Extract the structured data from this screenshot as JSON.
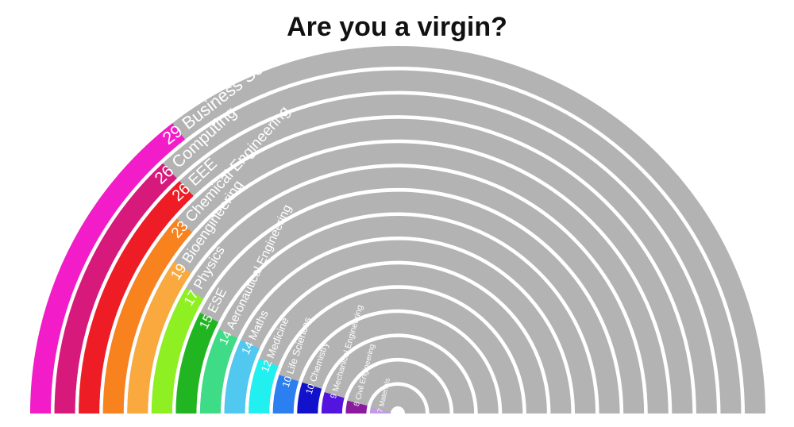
{
  "chart_data": {
    "type": "radial-bar",
    "title": "Are you a virgin?",
    "categories": [
      "Business School",
      "Computing",
      "EEE",
      "Chemical Engineering",
      "Bioengineering",
      "Physics",
      "ESE",
      "Aeronautical Engineering",
      "Maths",
      "Medicine",
      "Life Sciences",
      "Chemistry",
      "Mechanical Engineering",
      "Civil Engineering",
      "Materials"
    ],
    "values": [
      29,
      26,
      26,
      23,
      19,
      17,
      15,
      14,
      14,
      12,
      10,
      10,
      9,
      8,
      7
    ],
    "colors": [
      "#f21cc8",
      "#d8197c",
      "#ee1c25",
      "#f7821e",
      "#f9a93e",
      "#8ef022",
      "#22b522",
      "#3edc86",
      "#50c8f0",
      "#22f0f0",
      "#2c7ff0",
      "#1212cc",
      "#5414e0",
      "#8a1a9e",
      "#c39ae6"
    ],
    "track_color": "#b3b3b3",
    "xlim": [
      0,
      100
    ]
  }
}
